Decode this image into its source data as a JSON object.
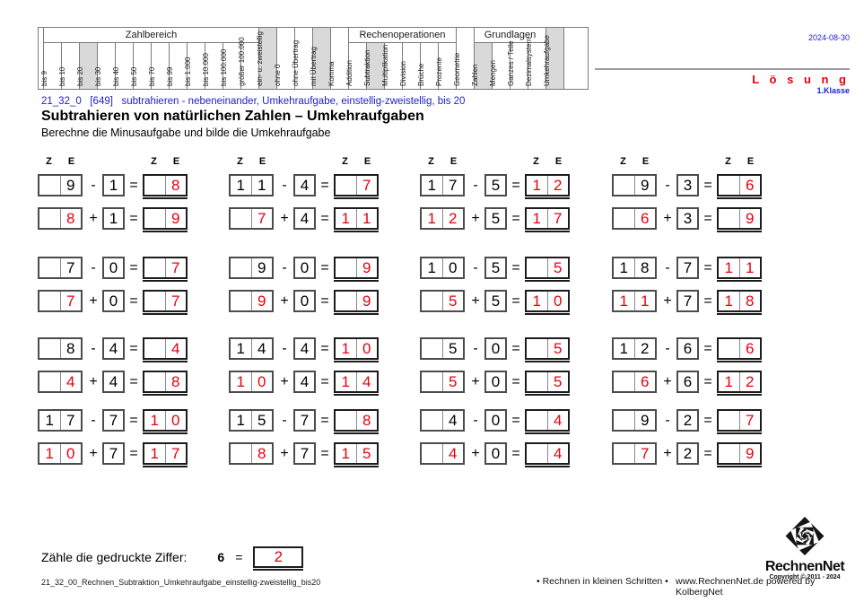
{
  "meta": {
    "date": "2024-08-30",
    "solution_label": "L ö s u n g",
    "grade_label": "1.Klasse"
  },
  "filter_table": {
    "groups": [
      "Zahlbereich",
      "Rechenoperationen",
      "Grundlagen"
    ],
    "columns": [
      {
        "label": "bis 9",
        "group": "Zahlbereich",
        "hl": false
      },
      {
        "label": "bis 10",
        "group": "Zahlbereich",
        "hl": false
      },
      {
        "label": "bis 20",
        "group": "Zahlbereich",
        "hl": true
      },
      {
        "label": "bis 30",
        "group": "Zahlbereich",
        "hl": false
      },
      {
        "label": "bis 40",
        "group": "Zahlbereich",
        "hl": false
      },
      {
        "label": "bis 50",
        "group": "Zahlbereich",
        "hl": false
      },
      {
        "label": "bis 70",
        "group": "Zahlbereich",
        "hl": false
      },
      {
        "label": "bis 99",
        "group": "Zahlbereich",
        "hl": false
      },
      {
        "label": "bis 1.000",
        "group": "Zahlbereich",
        "hl": false
      },
      {
        "label": "bis 10.000",
        "group": "Zahlbereich",
        "hl": false
      },
      {
        "label": "bis 100.000",
        "group": "Zahlbereich",
        "hl": false
      },
      {
        "label": "größer 100.000",
        "group": "Zahlbereich",
        "hl": false
      },
      {
        "label": "ein- u. zweistellig",
        "group": null,
        "hl": true
      },
      {
        "label": "ohne 0",
        "group": null,
        "hl": false
      },
      {
        "label": "ohne Übertrag",
        "group": null,
        "hl": false
      },
      {
        "label": "mit Übertrag",
        "group": null,
        "hl": true
      },
      {
        "label": "Komma",
        "group": null,
        "hl": false
      },
      {
        "label": "Addition",
        "group": "Rechenoperationen",
        "hl": false
      },
      {
        "label": "Subtraktion",
        "group": "Rechenoperationen",
        "hl": true
      },
      {
        "label": "Multiplikation",
        "group": "Rechenoperationen",
        "hl": false
      },
      {
        "label": "Division",
        "group": "Rechenoperationen",
        "hl": false
      },
      {
        "label": "Brüche",
        "group": "Rechenoperationen",
        "hl": false
      },
      {
        "label": "Prozente",
        "group": "Rechenoperationen",
        "hl": false
      },
      {
        "label": "Geometrie",
        "group": null,
        "hl": false
      },
      {
        "label": "Zahlen",
        "group": "Grundlagen",
        "hl": true
      },
      {
        "label": "Mengen",
        "group": "Grundlagen",
        "hl": false
      },
      {
        "label": "Ganzes / Teile",
        "group": "Grundlagen",
        "hl": false
      },
      {
        "label": "Dezimalsystem",
        "group": "Grundlagen",
        "hl": false
      },
      {
        "label": "Umkehraufgabe",
        "group": null,
        "hl": true
      }
    ]
  },
  "title": {
    "info_line": "21_32_0   [649]   subtrahieren - nebeneinander, Umkehraufgabe, einstellig-zweistellig, bis 20",
    "heading": "Subtrahieren von natürlichen Zahlen – Umkehraufgaben",
    "instruction": "Berechne die Minusaufgabe und bilde die Umkehraufgabe"
  },
  "worksheet": {
    "place_value_headers": {
      "tens": "Z",
      "ones": "E"
    },
    "ops": {
      "minus": "-",
      "plus": "+",
      "equals": "="
    },
    "problems": [
      {
        "sub": {
          "cells": [
            "",
            "9",
            "1",
            "",
            "8"
          ],
          "red": [
            0,
            0,
            0,
            0,
            1
          ]
        },
        "add": {
          "cells": [
            "",
            "8",
            "1",
            "",
            "9"
          ],
          "red": [
            0,
            1,
            0,
            0,
            1
          ]
        }
      },
      {
        "sub": {
          "cells": [
            "1",
            "1",
            "4",
            "",
            "7"
          ],
          "red": [
            0,
            0,
            0,
            0,
            1
          ]
        },
        "add": {
          "cells": [
            "",
            "7",
            "4",
            "1",
            "1"
          ],
          "red": [
            0,
            1,
            0,
            1,
            1
          ]
        }
      },
      {
        "sub": {
          "cells": [
            "1",
            "7",
            "5",
            "1",
            "2"
          ],
          "red": [
            0,
            0,
            0,
            1,
            1
          ]
        },
        "add": {
          "cells": [
            "1",
            "2",
            "5",
            "1",
            "7"
          ],
          "red": [
            1,
            1,
            0,
            1,
            1
          ]
        }
      },
      {
        "sub": {
          "cells": [
            "",
            "9",
            "3",
            "",
            "6"
          ],
          "red": [
            0,
            0,
            0,
            0,
            1
          ]
        },
        "add": {
          "cells": [
            "",
            "6",
            "3",
            "",
            "9"
          ],
          "red": [
            0,
            1,
            0,
            0,
            1
          ]
        }
      },
      {
        "sub": {
          "cells": [
            "",
            "7",
            "0",
            "",
            "7"
          ],
          "red": [
            0,
            0,
            0,
            0,
            1
          ]
        },
        "add": {
          "cells": [
            "",
            "7",
            "0",
            "",
            "7"
          ],
          "red": [
            0,
            1,
            0,
            0,
            1
          ]
        }
      },
      {
        "sub": {
          "cells": [
            "",
            "9",
            "0",
            "",
            "9"
          ],
          "red": [
            0,
            0,
            0,
            0,
            1
          ]
        },
        "add": {
          "cells": [
            "",
            "9",
            "0",
            "",
            "9"
          ],
          "red": [
            0,
            1,
            0,
            0,
            1
          ]
        }
      },
      {
        "sub": {
          "cells": [
            "1",
            "0",
            "5",
            "",
            "5"
          ],
          "red": [
            0,
            0,
            0,
            0,
            1
          ]
        },
        "add": {
          "cells": [
            "",
            "5",
            "5",
            "1",
            "0"
          ],
          "red": [
            0,
            1,
            0,
            1,
            1
          ]
        }
      },
      {
        "sub": {
          "cells": [
            "1",
            "8",
            "7",
            "1",
            "1"
          ],
          "red": [
            0,
            0,
            0,
            1,
            1
          ]
        },
        "add": {
          "cells": [
            "1",
            "1",
            "7",
            "1",
            "8"
          ],
          "red": [
            1,
            1,
            0,
            1,
            1
          ]
        }
      },
      {
        "sub": {
          "cells": [
            "",
            "8",
            "4",
            "",
            "4"
          ],
          "red": [
            0,
            0,
            0,
            0,
            1
          ]
        },
        "add": {
          "cells": [
            "",
            "4",
            "4",
            "",
            "8"
          ],
          "red": [
            0,
            1,
            0,
            0,
            1
          ]
        }
      },
      {
        "sub": {
          "cells": [
            "1",
            "4",
            "4",
            "1",
            "0"
          ],
          "red": [
            0,
            0,
            0,
            1,
            1
          ]
        },
        "add": {
          "cells": [
            "1",
            "0",
            "4",
            "1",
            "4"
          ],
          "red": [
            1,
            1,
            0,
            1,
            1
          ]
        }
      },
      {
        "sub": {
          "cells": [
            "",
            "5",
            "0",
            "",
            "5"
          ],
          "red": [
            0,
            0,
            0,
            0,
            1
          ]
        },
        "add": {
          "cells": [
            "",
            "5",
            "0",
            "",
            "5"
          ],
          "red": [
            0,
            1,
            0,
            0,
            1
          ]
        }
      },
      {
        "sub": {
          "cells": [
            "1",
            "2",
            "6",
            "",
            "6"
          ],
          "red": [
            0,
            0,
            0,
            0,
            1
          ]
        },
        "add": {
          "cells": [
            "",
            "6",
            "6",
            "1",
            "2"
          ],
          "red": [
            0,
            1,
            0,
            1,
            1
          ]
        }
      },
      {
        "sub": {
          "cells": [
            "1",
            "7",
            "7",
            "1",
            "0"
          ],
          "red": [
            0,
            0,
            0,
            1,
            1
          ]
        },
        "add": {
          "cells": [
            "1",
            "0",
            "7",
            "1",
            "7"
          ],
          "red": [
            1,
            1,
            0,
            1,
            1
          ]
        }
      },
      {
        "sub": {
          "cells": [
            "1",
            "5",
            "7",
            "",
            "8"
          ],
          "red": [
            0,
            0,
            0,
            0,
            1
          ]
        },
        "add": {
          "cells": [
            "",
            "8",
            "7",
            "1",
            "5"
          ],
          "red": [
            0,
            1,
            0,
            1,
            1
          ]
        }
      },
      {
        "sub": {
          "cells": [
            "",
            "4",
            "0",
            "",
            "4"
          ],
          "red": [
            0,
            0,
            0,
            0,
            1
          ]
        },
        "add": {
          "cells": [
            "",
            "4",
            "0",
            "",
            "4"
          ],
          "red": [
            0,
            1,
            0,
            0,
            1
          ]
        }
      },
      {
        "sub": {
          "cells": [
            "",
            "9",
            "2",
            "",
            "7"
          ],
          "red": [
            0,
            0,
            0,
            0,
            1
          ]
        },
        "add": {
          "cells": [
            "",
            "7",
            "2",
            "",
            "9"
          ],
          "red": [
            0,
            1,
            0,
            0,
            1
          ]
        }
      }
    ]
  },
  "count_task": {
    "label": "Zähle die gedruckte Ziffer:",
    "digit": "6",
    "equals": "=",
    "answer": "2"
  },
  "footer": {
    "filename": "21_32_00_Rechnen_Subtraktion_Umkehraufgabe_einstellig-zweistellig_bis20",
    "slogan": "• Rechnen in kleinen Schritten •",
    "website": "www.RechnenNet.de powered by KolbergNet",
    "logo_text": "RechnenNet",
    "copyright": "Copyright © 2011 - 2024"
  },
  "colors": {
    "accent_red": "#e8000f",
    "accent_blue": "#2020d0",
    "highlight_gray": "#d9d9d9"
  }
}
